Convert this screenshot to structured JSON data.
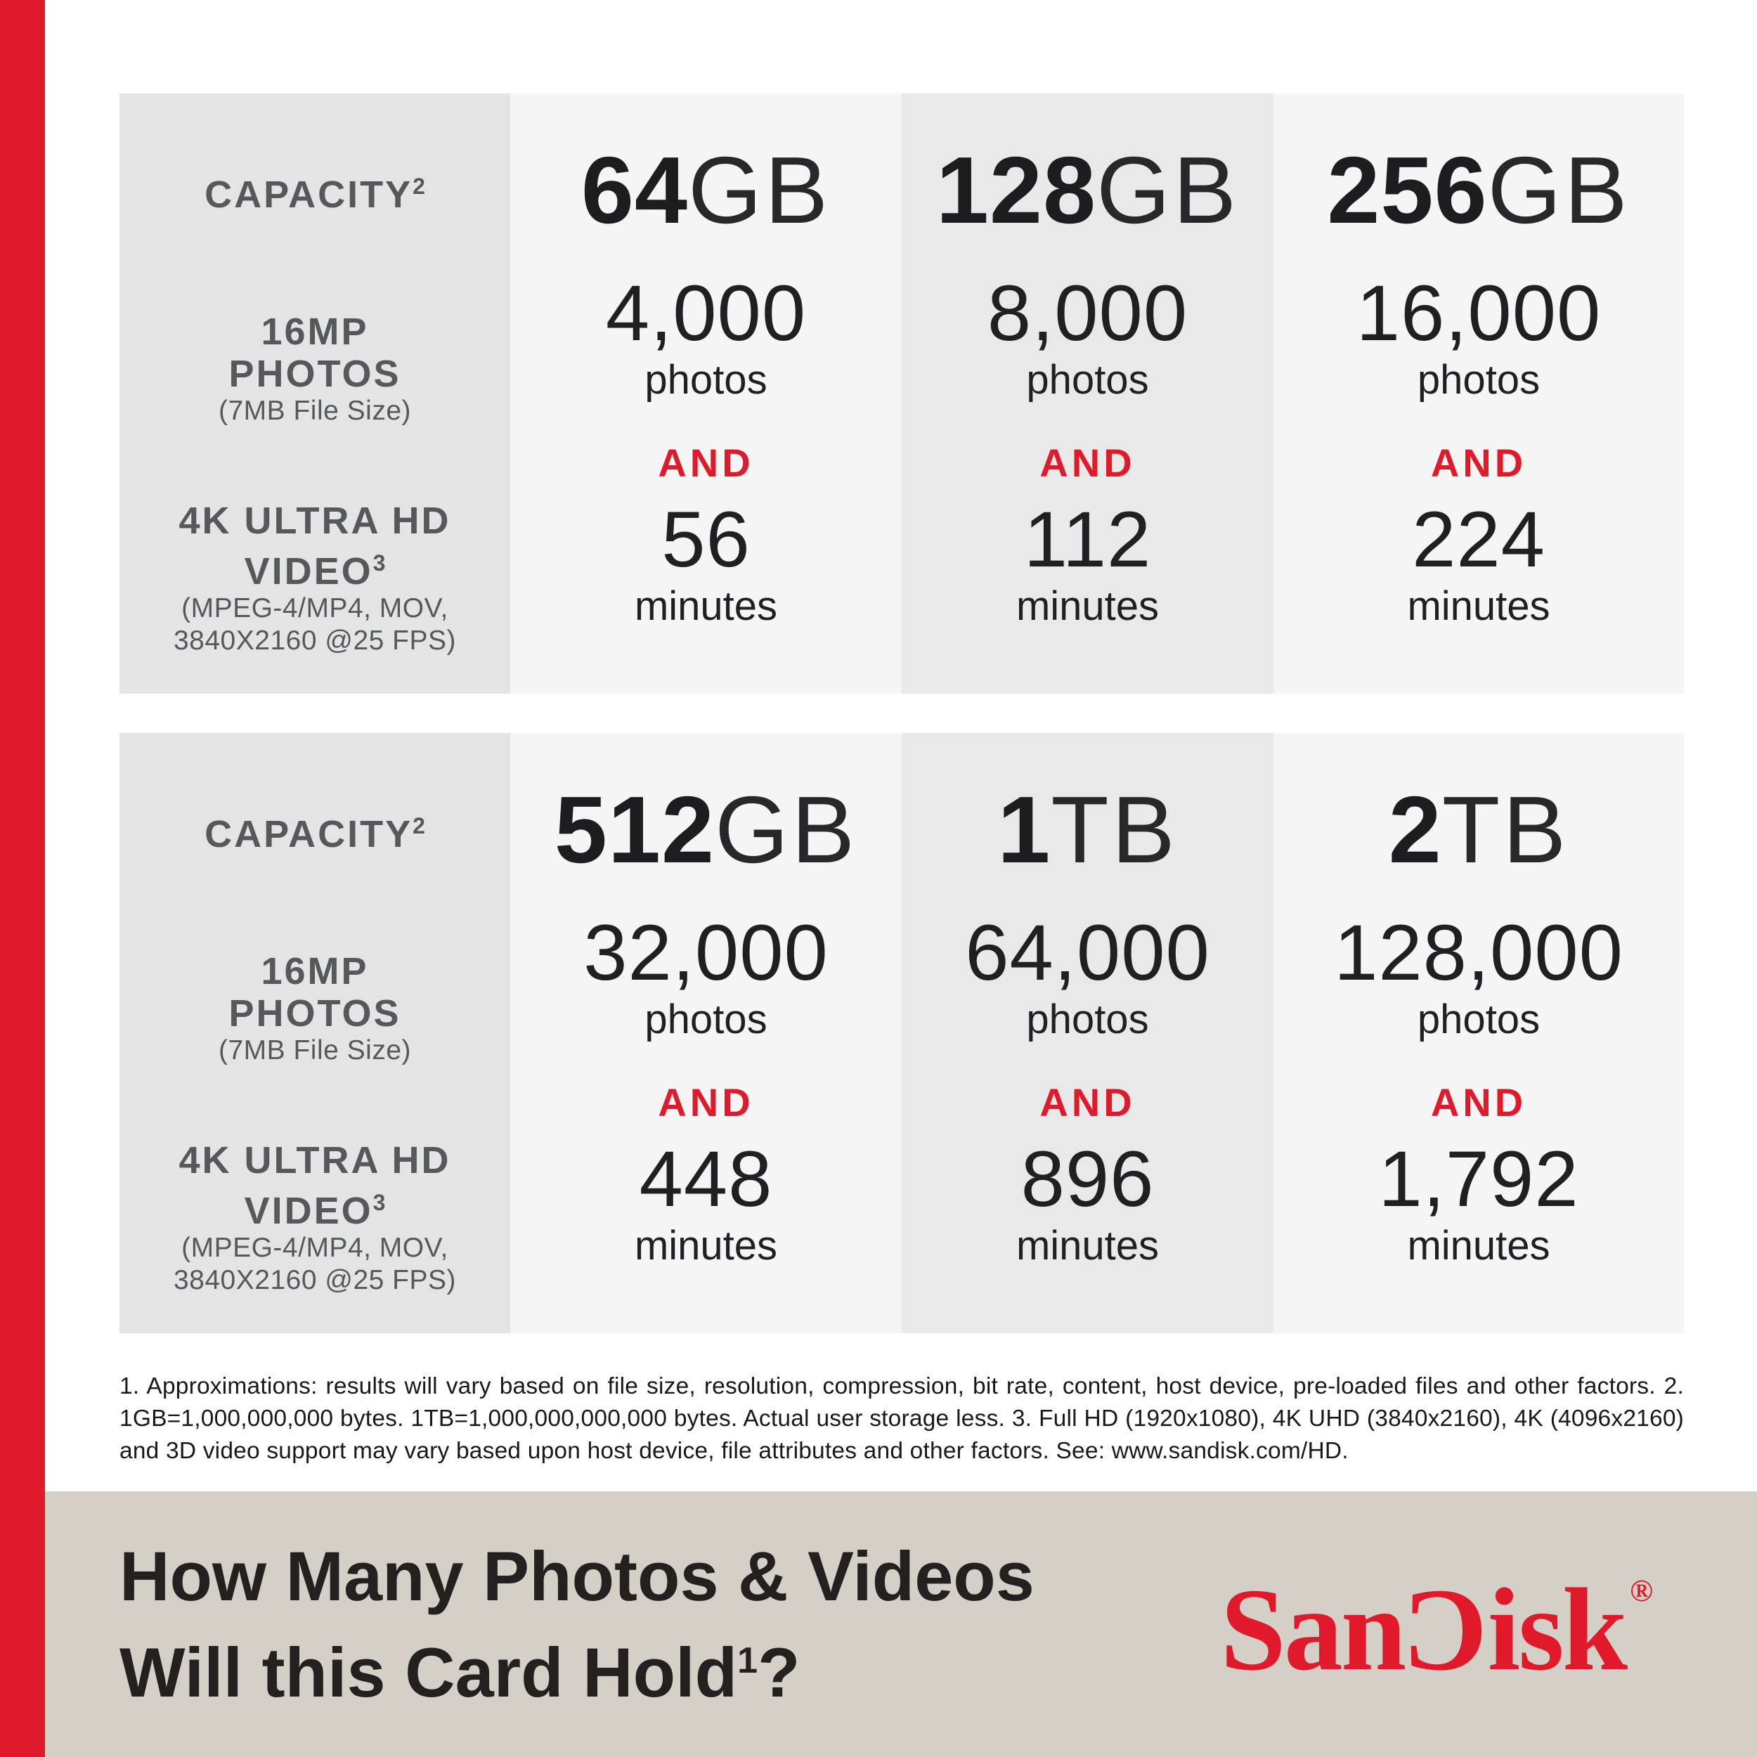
{
  "colors": {
    "brand_red": "#E01A2B",
    "label_column_bg": "#E4E4E4",
    "value_column_light_bg": "#F5F5F5",
    "value_column_mid_bg": "#E9E9E9",
    "banner_bg": "#D4CFC7",
    "label_text": "#57585C",
    "number_text": "#1D1D1F"
  },
  "tables": [
    {
      "label": {
        "capacity": "CAPACITY",
        "capacity_sup": "2",
        "photos_line1": "16MP",
        "photos_line2": "PHOTOS",
        "photos_note": "(7MB File Size)",
        "video_line1": "4K ULTRA HD",
        "video_line2": "VIDEO",
        "video_sup": "3",
        "video_note1": "(MPEG-4/MP4, MOV,",
        "video_note2": "3840X2160 @25 FPS)"
      },
      "columns": [
        {
          "capacity_value": "64",
          "capacity_unit": "GB",
          "photos_count": "4,000",
          "photos_label": "photos",
          "and_label": "AND",
          "minutes_count": "56",
          "minutes_label": "minutes"
        },
        {
          "capacity_value": "128",
          "capacity_unit": "GB",
          "photos_count": "8,000",
          "photos_label": "photos",
          "and_label": "AND",
          "minutes_count": "112",
          "minutes_label": "minutes"
        },
        {
          "capacity_value": "256",
          "capacity_unit": "GB",
          "photos_count": "16,000",
          "photos_label": "photos",
          "and_label": "AND",
          "minutes_count": "224",
          "minutes_label": "minutes"
        }
      ]
    },
    {
      "label": {
        "capacity": "CAPACITY",
        "capacity_sup": "2",
        "photos_line1": "16MP",
        "photos_line2": "PHOTOS",
        "photos_note": "(7MB File Size)",
        "video_line1": "4K ULTRA HD",
        "video_line2": "VIDEO",
        "video_sup": "3",
        "video_note1": "(MPEG-4/MP4, MOV,",
        "video_note2": "3840X2160 @25 FPS)"
      },
      "columns": [
        {
          "capacity_value": "512",
          "capacity_unit": "GB",
          "photos_count": "32,000",
          "photos_label": "photos",
          "and_label": "AND",
          "minutes_count": "448",
          "minutes_label": "minutes"
        },
        {
          "capacity_value": "1",
          "capacity_unit": "TB",
          "photos_count": "64,000",
          "photos_label": "photos",
          "and_label": "AND",
          "minutes_count": "896",
          "minutes_label": "minutes"
        },
        {
          "capacity_value": "2",
          "capacity_unit": "TB",
          "photos_count": "128,000",
          "photos_label": "photos",
          "and_label": "AND",
          "minutes_count": "1,792",
          "minutes_label": "minutes"
        }
      ]
    }
  ],
  "footnote": "1. Approximations: results will vary based on file size, resolution, compression, bit rate, content, host device, pre-loaded files and other factors. 2. 1GB=1,000,000,000 bytes. 1TB=1,000,000,000,000 bytes. Actual user storage less. 3. Full HD (1920x1080), 4K UHD (3840x2160), 4K (4096x2160) and 3D video support may vary based upon host device, file attributes and other factors. See: www.sandisk.com/HD.",
  "banner": {
    "heading_line1": "How Many Photos & Videos",
    "heading_line2": "Will this Card Hold",
    "heading_sup": "1",
    "heading_punct": "?",
    "logo_text": "SanDisk",
    "logo_pre": "San",
    "logo_d_glyph": "C",
    "logo_post": "isk",
    "registered_mark": "®"
  },
  "chart_data": {
    "type": "table",
    "title": "How Many Photos & Videos Will this Card Hold?",
    "columns": [
      "Capacity",
      "16MP Photos (7MB File Size)",
      "4K Ultra HD Video minutes (MPEG-4/MP4, MOV, 3840X2160 @25 FPS)"
    ],
    "rows": [
      [
        "64GB",
        4000,
        56
      ],
      [
        "128GB",
        8000,
        112
      ],
      [
        "256GB",
        16000,
        224
      ],
      [
        "512GB",
        32000,
        448
      ],
      [
        "1TB",
        64000,
        896
      ],
      [
        "2TB",
        128000,
        1792
      ]
    ],
    "photos_and_video_connector": "AND",
    "legend_position": "none",
    "grid": false
  }
}
